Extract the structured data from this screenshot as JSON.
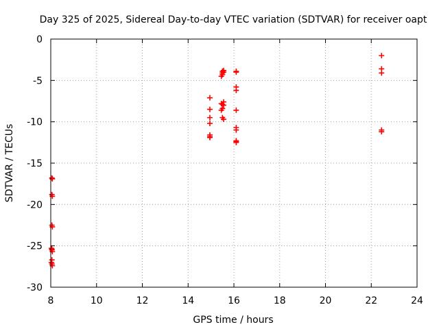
{
  "chart_data": {
    "type": "scatter",
    "title": "Day 325 of 2025, Sidereal Day-to-day VTEC variation (SDTVAR) for receiver oapt",
    "xlabel": "GPS time / hours",
    "ylabel": "SDTVAR / TECUs",
    "xlim": [
      8,
      24
    ],
    "ylim": [
      -30,
      0
    ],
    "xticks": [
      "8",
      "10",
      "12",
      "14",
      "16",
      "18",
      "20",
      "22",
      "24"
    ],
    "yticks": [
      "0",
      "-5",
      "-10",
      "-15",
      "-20",
      "-25",
      "-30"
    ],
    "grid": true,
    "marker": "plus",
    "series": [
      {
        "name": "SDTVAR",
        "color": "#ff0000",
        "x": [
          8.05,
          8.07,
          8.05,
          8.07,
          8.05,
          8.07,
          8.03,
          8.05,
          8.07,
          8.05,
          8.03,
          8.05,
          8.07,
          8.05,
          14.95,
          14.95,
          14.95,
          14.95,
          14.95,
          14.95,
          14.95,
          15.45,
          15.5,
          15.55,
          15.5,
          15.55,
          15.45,
          15.5,
          15.55,
          15.5,
          15.45,
          15.5,
          15.55,
          15.5,
          15.55,
          16.1,
          16.1,
          16.1,
          16.1,
          16.1,
          16.1,
          16.1,
          16.1,
          16.1,
          16.1,
          22.45,
          22.45,
          22.45,
          22.45,
          22.45
        ],
        "y": [
          -16.8,
          -16.9,
          -18.8,
          -19.0,
          -22.5,
          -22.7,
          -25.3,
          -25.5,
          -25.7,
          -26.7,
          -27.0,
          -27.2,
          -27.4,
          -25.4,
          -7.1,
          -8.5,
          -9.5,
          -10.2,
          -11.6,
          -11.8,
          -11.9,
          -4.5,
          -4.3,
          -4.0,
          -3.9,
          -7.6,
          -7.8,
          -7.9,
          -8.0,
          -8.4,
          -8.6,
          -9.5,
          -9.7,
          -4.1,
          -3.8,
          -3.9,
          -4.0,
          -5.8,
          -6.2,
          -8.6,
          -10.7,
          -11.0,
          -12.3,
          -12.5,
          -12.4,
          -2.0,
          -3.6,
          -4.1,
          -11.0,
          -11.2
        ]
      }
    ]
  }
}
